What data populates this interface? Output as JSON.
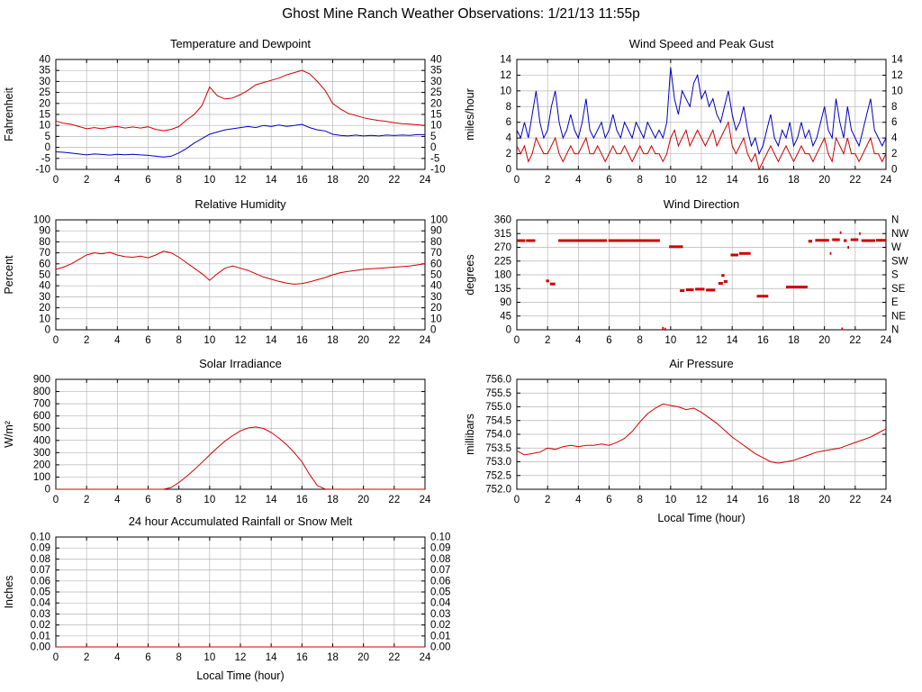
{
  "page": {
    "title": "Ghost Mine Ranch Weather Observations: 1/21/13 11:55p"
  },
  "colors": {
    "red": "#cf0000",
    "blue": "#0000bf",
    "grid": "#b5b5b5",
    "axis": "#000000"
  },
  "chart_data": [
    {
      "id": "temperature-dewpoint",
      "type": "line",
      "title": "Temperature and Dewpoint",
      "ylabel": "Fahrenheit",
      "xlim": [
        0,
        24
      ],
      "xtick_step": 2,
      "ylim": [
        -10,
        40
      ],
      "yticks": [
        -10,
        -5,
        0,
        5,
        10,
        15,
        20,
        25,
        30,
        35,
        40
      ],
      "ytick_labels": [
        "-10",
        "-5",
        "0",
        "5",
        "10",
        "15",
        "20",
        "25",
        "30",
        "35",
        "40"
      ],
      "mirror_y": true,
      "series": [
        {
          "name": "dewpoint",
          "color": "blue",
          "x_start": 0,
          "x_step": 0.5,
          "values": [
            -2,
            -2.2,
            -2.6,
            -3,
            -3.4,
            -3,
            -3.2,
            -3.5,
            -3.1,
            -3.3,
            -3.1,
            -3.4,
            -3.6,
            -4,
            -4.4,
            -4,
            -2.5,
            -0.5,
            2,
            4,
            6,
            7,
            8,
            8.5,
            9,
            9.5,
            9,
            10,
            9.5,
            10.2,
            9.6,
            10,
            10.5,
            9,
            8,
            7.5,
            6,
            5.5,
            5.2,
            5.6,
            5.2,
            5.5,
            5.2,
            5.6,
            5.4,
            5.6,
            5.5,
            5.8,
            5.8
          ]
        },
        {
          "name": "temperature",
          "color": "red",
          "x_start": 0,
          "x_step": 0.5,
          "values": [
            12,
            11,
            10.5,
            9.5,
            8.5,
            9,
            8.5,
            9.2,
            9.5,
            8.8,
            9.3,
            8.8,
            9.4,
            8.2,
            7.6,
            8.2,
            9.5,
            12.5,
            15,
            19,
            27.5,
            23.5,
            22,
            22.5,
            24,
            26,
            28.5,
            29.5,
            30.5,
            31.5,
            33,
            34,
            35,
            33.5,
            30,
            26,
            20,
            17.5,
            15.5,
            14.5,
            13.5,
            12.8,
            12.2,
            11.8,
            11.2,
            10.8,
            10.6,
            10.3,
            10
          ]
        }
      ]
    },
    {
      "id": "wind-speed-gust",
      "type": "line",
      "title": "Wind Speed and Peak Gust",
      "ylabel": "miles/hour",
      "xlim": [
        0,
        24
      ],
      "xtick_step": 2,
      "ylim": [
        0,
        14
      ],
      "yticks": [
        0,
        2,
        4,
        6,
        8,
        10,
        12,
        14
      ],
      "ytick_labels": [
        "0",
        "2",
        "4",
        "6",
        "8",
        "10",
        "12",
        "14"
      ],
      "mirror_y": true,
      "series": [
        {
          "name": "peak_gust",
          "color": "blue",
          "x_start": 0,
          "x_step": 0.25,
          "values": [
            5,
            4,
            6,
            4,
            7,
            10,
            6,
            4,
            5,
            8,
            10,
            6,
            4,
            5,
            7,
            5,
            4,
            6,
            9,
            5,
            4,
            5,
            6,
            4,
            5,
            7,
            5,
            4,
            6,
            5,
            4,
            6,
            5,
            4,
            6,
            5,
            4,
            5,
            4,
            6,
            13,
            9,
            7,
            10,
            9,
            8,
            11,
            12,
            9,
            10,
            8,
            9,
            7,
            6,
            8,
            10,
            7,
            5,
            6,
            8,
            5,
            3,
            4,
            2,
            3,
            5,
            7,
            4,
            3,
            5,
            4,
            6,
            3,
            4,
            6,
            4,
            5,
            3,
            4,
            6,
            8,
            5,
            4,
            9,
            6,
            4,
            8,
            5,
            4,
            3,
            5,
            7,
            9,
            5,
            4,
            3,
            4
          ]
        },
        {
          "name": "wind_speed",
          "color": "red",
          "x_start": 0,
          "x_step": 0.25,
          "values": [
            3,
            2,
            3,
            1,
            2,
            4,
            3,
            2,
            2,
            3,
            4,
            2,
            1,
            2,
            3,
            2,
            2,
            3,
            4,
            2,
            2,
            3,
            2,
            1,
            2,
            3,
            2,
            2,
            3,
            2,
            1,
            2,
            3,
            2,
            2,
            3,
            2,
            2,
            1,
            2,
            4,
            5,
            3,
            4,
            5,
            3,
            4,
            5,
            4,
            3,
            4,
            5,
            3,
            4,
            5,
            6,
            3,
            2,
            3,
            4,
            2,
            1,
            2,
            0,
            1,
            2,
            3,
            2,
            1,
            2,
            3,
            2,
            1,
            2,
            3,
            2,
            2,
            1,
            2,
            3,
            4,
            2,
            1,
            4,
            3,
            2,
            4,
            2,
            2,
            1,
            2,
            3,
            4,
            2,
            2,
            1,
            2
          ]
        }
      ]
    },
    {
      "id": "relative-humidity",
      "type": "line",
      "title": "Relative Humidity",
      "ylabel": "Percent",
      "xlim": [
        0,
        24
      ],
      "xtick_step": 2,
      "ylim": [
        0,
        100
      ],
      "yticks": [
        0,
        10,
        20,
        30,
        40,
        50,
        60,
        70,
        80,
        90,
        100
      ],
      "ytick_labels": [
        "0",
        "10",
        "20",
        "30",
        "40",
        "50",
        "60",
        "70",
        "80",
        "90",
        "100"
      ],
      "mirror_y": true,
      "series": [
        {
          "name": "relative_humidity",
          "color": "red",
          "x_start": 0,
          "x_step": 0.5,
          "values": [
            55,
            57,
            60,
            64,
            68,
            70,
            69,
            70.5,
            68,
            66.5,
            66,
            67,
            65.5,
            68,
            71.5,
            70,
            66,
            61,
            56,
            51,
            45,
            51,
            56,
            58,
            56,
            54,
            51,
            48,
            46,
            44,
            42.5,
            41.5,
            42,
            43.5,
            45.5,
            47.5,
            50,
            52,
            53,
            54,
            55,
            55.5,
            56,
            56.5,
            57,
            57.5,
            58,
            59,
            60
          ]
        }
      ]
    },
    {
      "id": "wind-direction",
      "type": "scatter",
      "title": "Wind Direction",
      "ylabel": "degrees",
      "xlim": [
        0,
        24
      ],
      "xtick_step": 2,
      "ylim": [
        0,
        360
      ],
      "yticks": [
        0,
        45,
        90,
        135,
        180,
        225,
        270,
        315,
        360
      ],
      "ytick_labels": [
        "0",
        "45",
        "90",
        "135",
        "180",
        "225",
        "270",
        "315",
        "360"
      ],
      "ytick_labels_right": [
        "N",
        "NE",
        "E",
        "SE",
        "S",
        "SW",
        "W",
        "NW",
        "N"
      ],
      "mirror_y": true,
      "color": "red",
      "segments": [
        [
          0.0,
          0.55,
          292
        ],
        [
          0.6,
          1.2,
          292
        ],
        [
          1.9,
          2.1,
          160
        ],
        [
          2.15,
          2.5,
          150
        ],
        [
          2.7,
          5.85,
          292
        ],
        [
          5.95,
          9.3,
          292
        ],
        [
          9.45,
          9.55,
          5
        ],
        [
          9.6,
          9.7,
          2
        ],
        [
          9.9,
          10.8,
          272
        ],
        [
          10.6,
          10.9,
          128
        ],
        [
          11.0,
          11.5,
          131
        ],
        [
          11.6,
          12.2,
          133
        ],
        [
          12.3,
          12.9,
          130
        ],
        [
          13.1,
          13.4,
          152
        ],
        [
          13.3,
          13.5,
          178
        ],
        [
          13.45,
          13.7,
          158
        ],
        [
          13.9,
          14.4,
          245
        ],
        [
          14.45,
          15.2,
          250
        ],
        [
          15.6,
          16.35,
          110
        ],
        [
          17.5,
          18.9,
          140
        ],
        [
          18.95,
          19.2,
          290
        ],
        [
          19.4,
          20.3,
          293
        ],
        [
          20.35,
          20.45,
          250
        ],
        [
          20.5,
          21.0,
          295
        ],
        [
          21.0,
          21.1,
          318
        ],
        [
          21.1,
          21.2,
          3
        ],
        [
          21.25,
          21.45,
          292
        ],
        [
          21.5,
          21.6,
          270
        ],
        [
          21.7,
          22.2,
          295
        ],
        [
          22.25,
          22.35,
          315
        ],
        [
          22.4,
          23.3,
          292
        ],
        [
          23.35,
          24.0,
          293
        ]
      ]
    },
    {
      "id": "solar-irradiance",
      "type": "line",
      "title": "Solar Irradiance",
      "ylabel": "W/m²",
      "xlim": [
        0,
        24
      ],
      "xtick_step": 2,
      "ylim": [
        0,
        900
      ],
      "yticks": [
        0,
        100,
        200,
        300,
        400,
        500,
        600,
        700,
        800,
        900
      ],
      "ytick_labels": [
        "0",
        "100",
        "200",
        "300",
        "400",
        "500",
        "600",
        "700",
        "800",
        "900"
      ],
      "mirror_y": false,
      "series": [
        {
          "name": "solar_irradiance",
          "color": "red",
          "x_start": 0,
          "x_step": 0.5,
          "values": [
            0,
            0,
            0,
            0,
            0,
            0,
            0,
            0,
            0,
            0,
            0,
            0,
            0,
            0,
            0,
            15,
            55,
            105,
            160,
            220,
            280,
            340,
            395,
            440,
            478,
            502,
            510,
            498,
            465,
            420,
            365,
            300,
            225,
            120,
            30,
            2,
            0,
            0,
            0,
            0,
            0,
            0,
            0,
            0,
            0,
            0,
            0,
            0,
            0
          ]
        }
      ]
    },
    {
      "id": "air-pressure",
      "type": "line",
      "title": "Air Pressure",
      "ylabel": "millibars",
      "xlabel": "Local Time (hour)",
      "xlim": [
        0,
        24
      ],
      "xtick_step": 2,
      "ylim": [
        752.0,
        756.0
      ],
      "yticks": [
        752.0,
        752.5,
        753.0,
        753.5,
        754.0,
        754.5,
        755.0,
        755.5,
        756.0
      ],
      "ytick_labels": [
        "752.0",
        "752.5",
        "753.0",
        "753.5",
        "754.0",
        "754.5",
        "755.0",
        "755.5",
        "756.0"
      ],
      "mirror_y": false,
      "series": [
        {
          "name": "air_pressure",
          "color": "red",
          "x_start": 0,
          "x_step": 0.5,
          "values": [
            753.4,
            753.25,
            753.3,
            753.35,
            753.5,
            753.45,
            753.55,
            753.6,
            753.55,
            753.6,
            753.6,
            753.65,
            753.6,
            753.7,
            753.85,
            754.1,
            754.45,
            754.75,
            754.95,
            755.1,
            755.05,
            755.0,
            754.9,
            754.95,
            754.8,
            754.6,
            754.4,
            754.15,
            753.9,
            753.7,
            753.5,
            753.3,
            753.15,
            753.0,
            752.95,
            753.0,
            753.05,
            753.15,
            753.25,
            753.35,
            753.4,
            753.45,
            753.5,
            753.6,
            753.7,
            753.8,
            753.9,
            754.05,
            754.2
          ]
        }
      ]
    },
    {
      "id": "rainfall",
      "type": "line",
      "title": "24 hour Accumulated Rainfall or Snow Melt",
      "ylabel": "Inches",
      "xlabel": "Local Time (hour)",
      "xlim": [
        0,
        24
      ],
      "xtick_step": 2,
      "ylim": [
        0.0,
        0.1
      ],
      "yticks": [
        0.0,
        0.01,
        0.02,
        0.03,
        0.04,
        0.05,
        0.06,
        0.07,
        0.08,
        0.09,
        0.1
      ],
      "ytick_labels": [
        "0.00",
        "0.01",
        "0.02",
        "0.03",
        "0.04",
        "0.05",
        "0.06",
        "0.07",
        "0.08",
        "0.09",
        "0.10"
      ],
      "mirror_y": true,
      "series": [
        {
          "name": "accumulated_rainfall",
          "color": "red",
          "x_start": 0,
          "x_step": 24,
          "values": [
            0,
            0
          ]
        }
      ]
    }
  ]
}
